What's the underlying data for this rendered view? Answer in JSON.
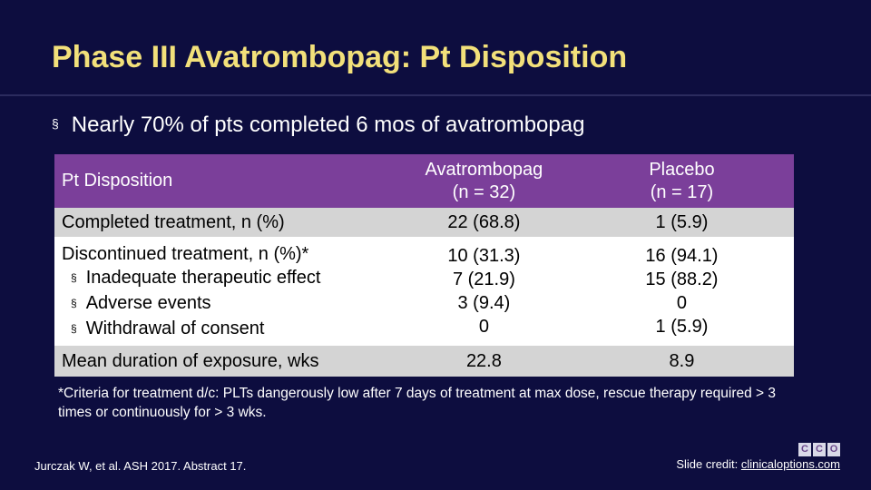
{
  "slide": {
    "title": "Phase III Avatrombopag: Pt Disposition",
    "bullet": "Nearly 70% of pts completed 6 mos of avatrombopag",
    "bullet_marker": "§"
  },
  "table": {
    "header": {
      "col0": "Pt Disposition",
      "col1_line1": "Avatrombopag",
      "col1_line2": "(n = 32)",
      "col2_line1": "Placebo",
      "col2_line2": "(n = 17)"
    },
    "completed": {
      "label": "Completed treatment, n (%)",
      "avatrombopag": "22 (68.8)",
      "placebo": "1 (5.9)"
    },
    "discontinued": {
      "label": "Discontinued treatment, n (%)*",
      "avatrombopag": "10 (31.3)",
      "placebo": "16 (94.1)",
      "reasons": [
        {
          "label": "Inadequate therapeutic effect",
          "avatrombopag": "7 (21.9)",
          "placebo": "15 (88.2)"
        },
        {
          "label": "Adverse events",
          "avatrombopag": "3 (9.4)",
          "placebo": "0"
        },
        {
          "label": "Withdrawal of consent",
          "avatrombopag": "0",
          "placebo": "1 (5.9)"
        }
      ]
    },
    "mean_exposure": {
      "label": "Mean duration of exposure, wks",
      "avatrombopag": "22.8",
      "placebo": "8.9"
    }
  },
  "footnote": "*Criteria for treatment d/c: PLTs dangerously low after 7 days of treatment at max dose, rescue therapy required > 3 times or continuously for > 3 wks.",
  "reference": "Jurczak W, et al. ASH 2017. Abstract 17.",
  "credit": {
    "prefix": "Slide credit: ",
    "link": "clinicaloptions.com"
  },
  "logo": {
    "letters": [
      "C",
      "C",
      "O"
    ]
  },
  "colors": {
    "background": "#0d0d3f",
    "title": "#f2e07a",
    "header_row": "#7b3f9a",
    "shaded_row": "#d4d4d4"
  }
}
